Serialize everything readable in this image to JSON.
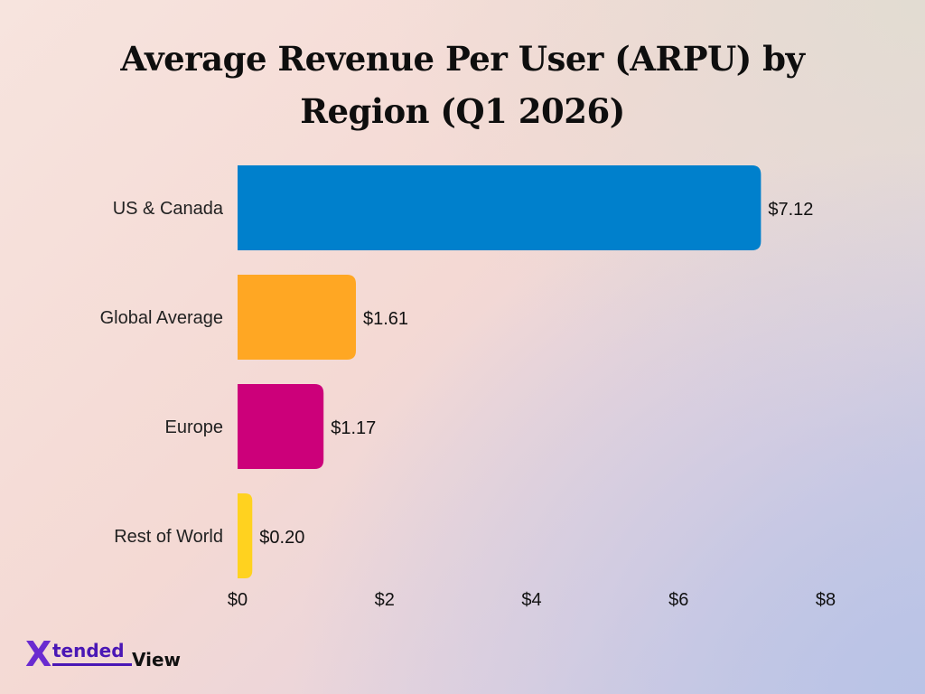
{
  "chart_data": {
    "type": "bar",
    "orientation": "horizontal",
    "title_lines": [
      "Average Revenue Per User (ARPU) by",
      "Region (Q1 2026)"
    ],
    "categories": [
      "US & Canada",
      "Global Average",
      "Europe",
      "Rest of World"
    ],
    "values": [
      7.12,
      1.61,
      1.17,
      0.2
    ],
    "value_labels": [
      "$7.12",
      "$1.61",
      "$1.17",
      "$0.20"
    ],
    "colors": [
      "#0080cc",
      "#ffa723",
      "#cc007a",
      "#ffd21f"
    ],
    "xlim": [
      0,
      8
    ],
    "x_ticks": [
      0,
      2,
      4,
      6,
      8
    ],
    "x_tick_labels": [
      "$0",
      "$2",
      "$4",
      "$6",
      "$8"
    ],
    "grid": false,
    "legend": "none",
    "xlabel": "",
    "ylabel": ""
  },
  "brand": {
    "logo_x": "X",
    "logo_tended": "tended",
    "logo_view": "View",
    "accent": "#4a17b5"
  }
}
